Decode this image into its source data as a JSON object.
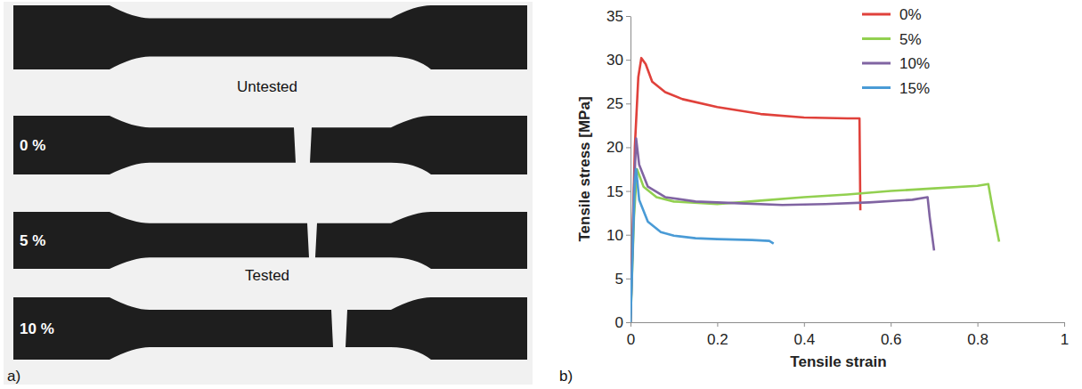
{
  "figure_a": {
    "label": "a)",
    "untested": "Untested",
    "tested": "Tested",
    "specimens": [
      "0 %",
      "5 %",
      "10 %"
    ]
  },
  "chart_data": {
    "type": "line",
    "panel_label": "b)",
    "x_label": "Tensile strain",
    "y_label": "Tensile stress [MPa]",
    "xlim": [
      0,
      1
    ],
    "xticks": [
      0,
      0.2,
      0.4,
      0.6,
      0.8,
      1
    ],
    "ylim": [
      0,
      35
    ],
    "yticks": [
      0,
      5,
      10,
      15,
      20,
      25,
      30,
      35
    ],
    "grid": false,
    "legend": "upper right",
    "series": [
      {
        "name": "0%",
        "color": "#e0413b",
        "x": [
          0,
          0.005,
          0.01,
          0.018,
          0.025,
          0.035,
          0.05,
          0.08,
          0.12,
          0.2,
          0.3,
          0.4,
          0.5,
          0.528,
          0.53
        ],
        "values": [
          0,
          10,
          20,
          28,
          30.2,
          29.5,
          27.5,
          26.3,
          25.5,
          24.6,
          23.8,
          23.4,
          23.3,
          23.3,
          12.8
        ]
      },
      {
        "name": "5%",
        "color": "#92d050",
        "x": [
          0,
          0.008,
          0.015,
          0.03,
          0.06,
          0.1,
          0.2,
          0.3,
          0.4,
          0.5,
          0.6,
          0.7,
          0.8,
          0.825,
          0.835,
          0.85
        ],
        "values": [
          0,
          12,
          17.5,
          15.5,
          14.3,
          13.8,
          13.5,
          13.9,
          14.3,
          14.6,
          15.0,
          15.3,
          15.6,
          15.8,
          13,
          9.2
        ]
      },
      {
        "name": "10%",
        "color": "#8064a2",
        "x": [
          0,
          0.008,
          0.013,
          0.02,
          0.04,
          0.08,
          0.15,
          0.25,
          0.35,
          0.45,
          0.55,
          0.65,
          0.685,
          0.69,
          0.7
        ],
        "values": [
          0,
          15,
          21,
          18,
          15.5,
          14.3,
          13.8,
          13.6,
          13.4,
          13.5,
          13.7,
          14.0,
          14.3,
          12,
          8.2
        ]
      },
      {
        "name": "15%",
        "color": "#4a9bd6",
        "x": [
          0,
          0.005,
          0.01,
          0.013,
          0.02,
          0.04,
          0.07,
          0.1,
          0.15,
          0.2,
          0.28,
          0.32,
          0.33
        ],
        "values": [
          0,
          8,
          16,
          17.5,
          14,
          11.5,
          10.3,
          9.9,
          9.6,
          9.5,
          9.4,
          9.3,
          9.0
        ]
      }
    ]
  }
}
